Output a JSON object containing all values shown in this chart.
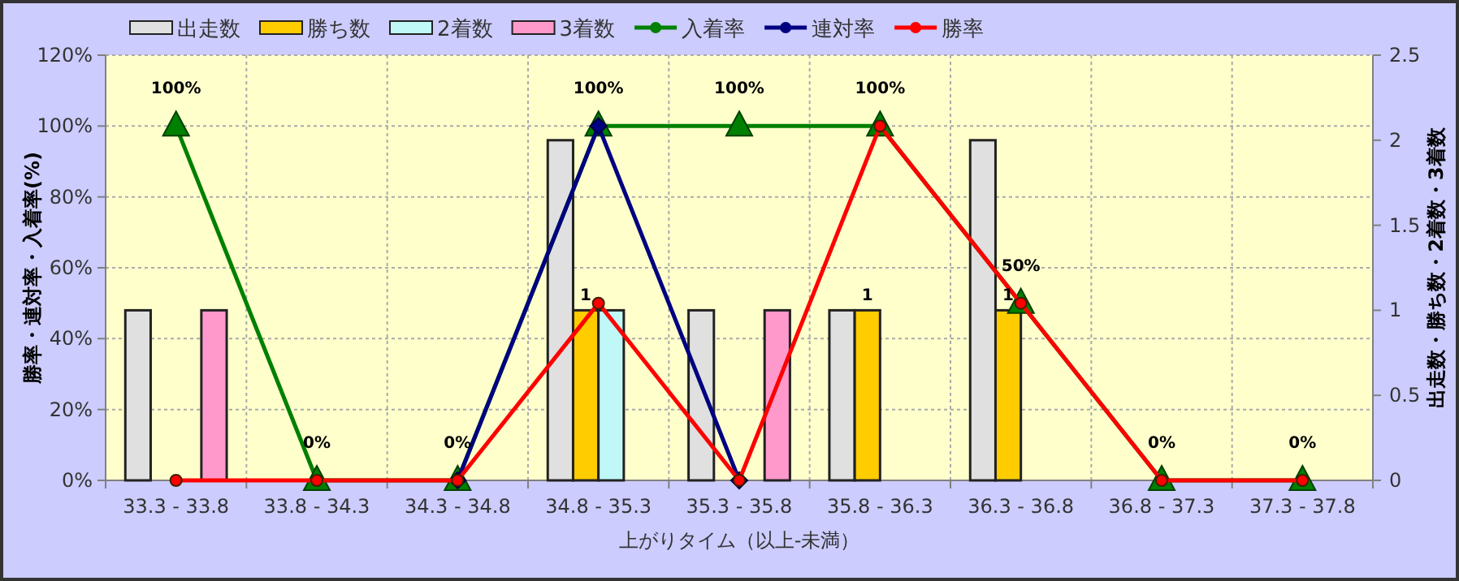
{
  "chart_data": {
    "type": "bar",
    "xlabel": "上がりタイム（以上-未満）",
    "ylabel": "勝率・連対率・入着率(%)",
    "y2label": "出走数・勝ち数・2着数・3着数",
    "categories": [
      "33.3 - 33.8",
      "33.8 - 34.3",
      "34.3 - 34.8",
      "34.8 - 35.3",
      "35.3 - 35.8",
      "35.8 - 36.3",
      "36.3 - 36.8",
      "36.8 - 37.3",
      "37.3 - 37.8"
    ],
    "series": [
      {
        "name": "出走数",
        "axis": "y2",
        "color": "#e0e0e0",
        "values": [
          1,
          0,
          0,
          2,
          1,
          1,
          2,
          0,
          0
        ]
      },
      {
        "name": "勝ち数",
        "axis": "y2",
        "color": "#ffcc00",
        "values": [
          0,
          0,
          0,
          1,
          0,
          1,
          1,
          0,
          0
        ],
        "value_labels": [
          null,
          null,
          null,
          "1",
          null,
          "1",
          "1",
          null,
          null
        ]
      },
      {
        "name": "2着数",
        "axis": "y2",
        "color": "#c0f8f8",
        "values": [
          0,
          0,
          0,
          1,
          0,
          0,
          0,
          0,
          0
        ]
      },
      {
        "name": "3着数",
        "axis": "y2",
        "color": "#ff99cc",
        "values": [
          1,
          0,
          0,
          0,
          1,
          0,
          0,
          0,
          0
        ]
      },
      {
        "name": "入着率",
        "type": "line",
        "axis": "y",
        "color": "#008000",
        "marker": "triangle",
        "values": [
          100,
          0,
          0,
          100,
          100,
          100,
          50,
          0,
          0
        ],
        "value_labels": [
          "100%",
          "0%",
          "0%",
          "100%",
          "100%",
          "100%",
          "50%",
          "0%",
          "0%"
        ]
      },
      {
        "name": "連対率",
        "type": "line",
        "axis": "y",
        "color": "#000080",
        "marker": "diamond",
        "values": [
          null,
          null,
          0,
          100,
          0,
          null,
          null,
          null,
          null
        ]
      },
      {
        "name": "勝率",
        "type": "line",
        "axis": "y",
        "color": "#ff0000",
        "marker": "circle",
        "values": [
          0,
          0,
          0,
          50,
          0,
          100,
          50,
          0,
          0
        ]
      }
    ],
    "ylim": [
      0,
      120
    ],
    "yticks": [
      {
        "value": 0,
        "label": "0%"
      },
      {
        "value": 20,
        "label": "20%"
      },
      {
        "value": 40,
        "label": "40%"
      },
      {
        "value": 60,
        "label": "60%"
      },
      {
        "value": 80,
        "label": "80%"
      },
      {
        "value": 100,
        "label": "100%"
      },
      {
        "value": 120,
        "label": "120%"
      }
    ],
    "y2lim": [
      0,
      2.5
    ],
    "y2ticks": [
      0,
      0.5,
      1,
      1.5,
      2,
      2.5
    ],
    "grid": true,
    "legend": "top"
  }
}
